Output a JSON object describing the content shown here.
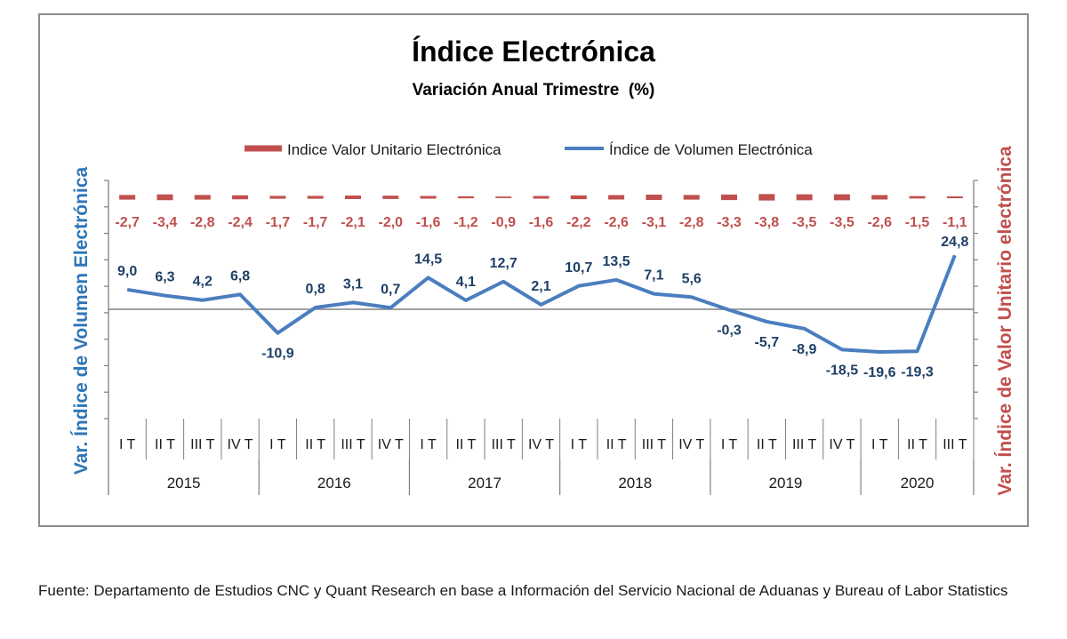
{
  "chart_data": {
    "type": "line",
    "title": "Índice Electrónica",
    "subtitle": "Variación Anual Trimestre  (%)",
    "ylabel_left": "Var. Índice de Volumen Electrónica",
    "ylabel_right": "Var. Índice de Valor Unitario electrónica",
    "legend_position": "top-center",
    "colors": {
      "volumen": "#4a7ebf",
      "valor": "#c0504d",
      "volumen_label": "#1f3f66",
      "valor_label": "#c0504d",
      "axis": "#7f7f7f"
    },
    "quarters": [
      "I T",
      "II T",
      "III T",
      "IV T",
      "I T",
      "II T",
      "III T",
      "IV T",
      "I T",
      "II T",
      "III T",
      "IV T",
      "I T",
      "II T",
      "III T",
      "IV T",
      "I T",
      "II T",
      "III T",
      "IV T",
      "I T",
      "II T",
      "III T"
    ],
    "years": [
      {
        "label": "2015",
        "quarters": 4
      },
      {
        "label": "2016",
        "quarters": 4
      },
      {
        "label": "2017",
        "quarters": 4
      },
      {
        "label": "2018",
        "quarters": 4
      },
      {
        "label": "2019",
        "quarters": 4
      },
      {
        "label": "2020",
        "quarters": 3
      }
    ],
    "series": [
      {
        "key": "valor",
        "name": "Indice Valor Unitario Electrónica",
        "style": "dashed-marker",
        "values": [
          -2.7,
          -3.4,
          -2.8,
          -2.4,
          -1.7,
          -1.7,
          -2.1,
          -2.0,
          -1.6,
          -1.2,
          -0.9,
          -1.6,
          -2.2,
          -2.6,
          -3.1,
          -2.8,
          -3.3,
          -3.8,
          -3.5,
          -3.5,
          -2.6,
          -1.5,
          -1.1
        ],
        "labels": [
          "-2,7",
          "-3,4",
          "-2,8",
          "-2,4",
          "-1,7",
          "-1,7",
          "-2,1",
          "-2,0",
          "-1,6",
          "-1,2",
          "-0,9",
          "-1,6",
          "-2,2",
          "-2,6",
          "-3,1",
          "-2,8",
          "-3,3",
          "-3,8",
          "-3,5",
          "-3,5",
          "-2,6",
          "-1,5",
          "-1,1"
        ]
      },
      {
        "key": "volumen",
        "name": "Índice de Volumen Electrónica",
        "style": "line",
        "values": [
          9.0,
          6.3,
          4.2,
          6.8,
          -10.9,
          0.8,
          3.1,
          0.7,
          14.5,
          4.1,
          12.7,
          2.1,
          10.7,
          13.5,
          7.1,
          5.6,
          -0.3,
          -5.7,
          -8.9,
          -18.5,
          -19.6,
          -19.3,
          24.8
        ],
        "labels": [
          "9,0",
          "6,3",
          "4,2",
          "6,8",
          "-10,9",
          "0,8",
          "3,1",
          "0,7",
          "14,5",
          "4,1",
          "12,7",
          "2,1",
          "10,7",
          "13,5",
          "7,1",
          "5,6",
          "-0,3",
          "-5,7",
          "-8,9",
          "-18,5",
          "-19,6",
          "-19,3",
          "24,8"
        ]
      }
    ]
  },
  "source": "Fuente: Departamento de Estudios CNC y Quant Research en base a Información del Servicio Nacional de Aduanas y Bureau of Labor Statistics"
}
